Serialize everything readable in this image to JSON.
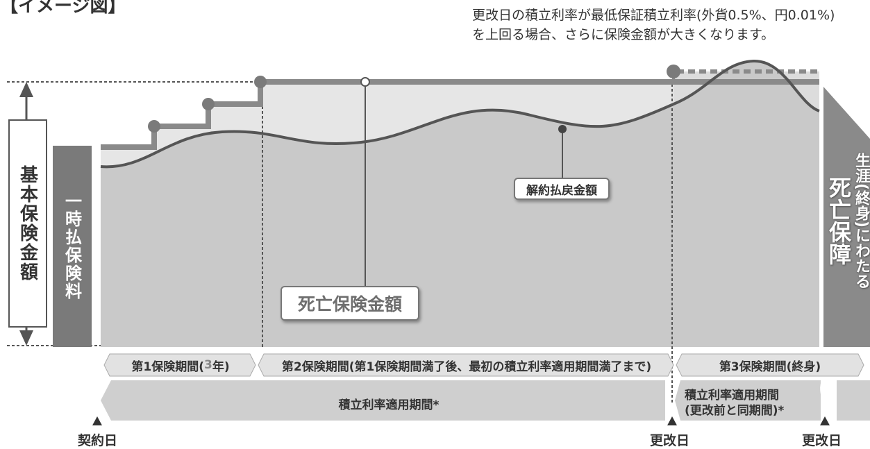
{
  "corner_title": "【イメージ図】",
  "top_note": {
    "line1": "更改日の積立利率が最低保証積立利率(外貨0.5%、円0.01%)",
    "line2": "を上回る場合、さらに保険金額が大きくなります。"
  },
  "basic_sum_label": "基本保険金額",
  "lump_sum_premium_label": "一時払保険料",
  "death_benefit_label": "死亡保険金額",
  "surrender_value_label": "解約払戻金額",
  "right_caption": {
    "small": "生涯(終身)にわたる",
    "big": "死亡保障"
  },
  "periods": {
    "first_prefix": "第1保険期間(",
    "first_num": "3",
    "first_suffix": "年)",
    "second": "第2保険期間(第1保険期間満了後、最初の積立利率適用期間満了まで)",
    "third": "第3保険期間(終身)"
  },
  "rate_bands": {
    "first": "積立利率適用期間*",
    "second_line1": "積立利率適用期間",
    "second_line2": "(更改前と同期間)*"
  },
  "dates": {
    "contract": "契約日",
    "renewal1": "更改日",
    "renewal2": "更改日"
  },
  "colors": {
    "fill_light": "#e6e6e6",
    "fill_mid": "#c9c9c9",
    "line_death": "#8a8a8a",
    "line_surrender": "#555555",
    "premium_box": "#7a7a7a",
    "band": "#cfcfcf"
  }
}
